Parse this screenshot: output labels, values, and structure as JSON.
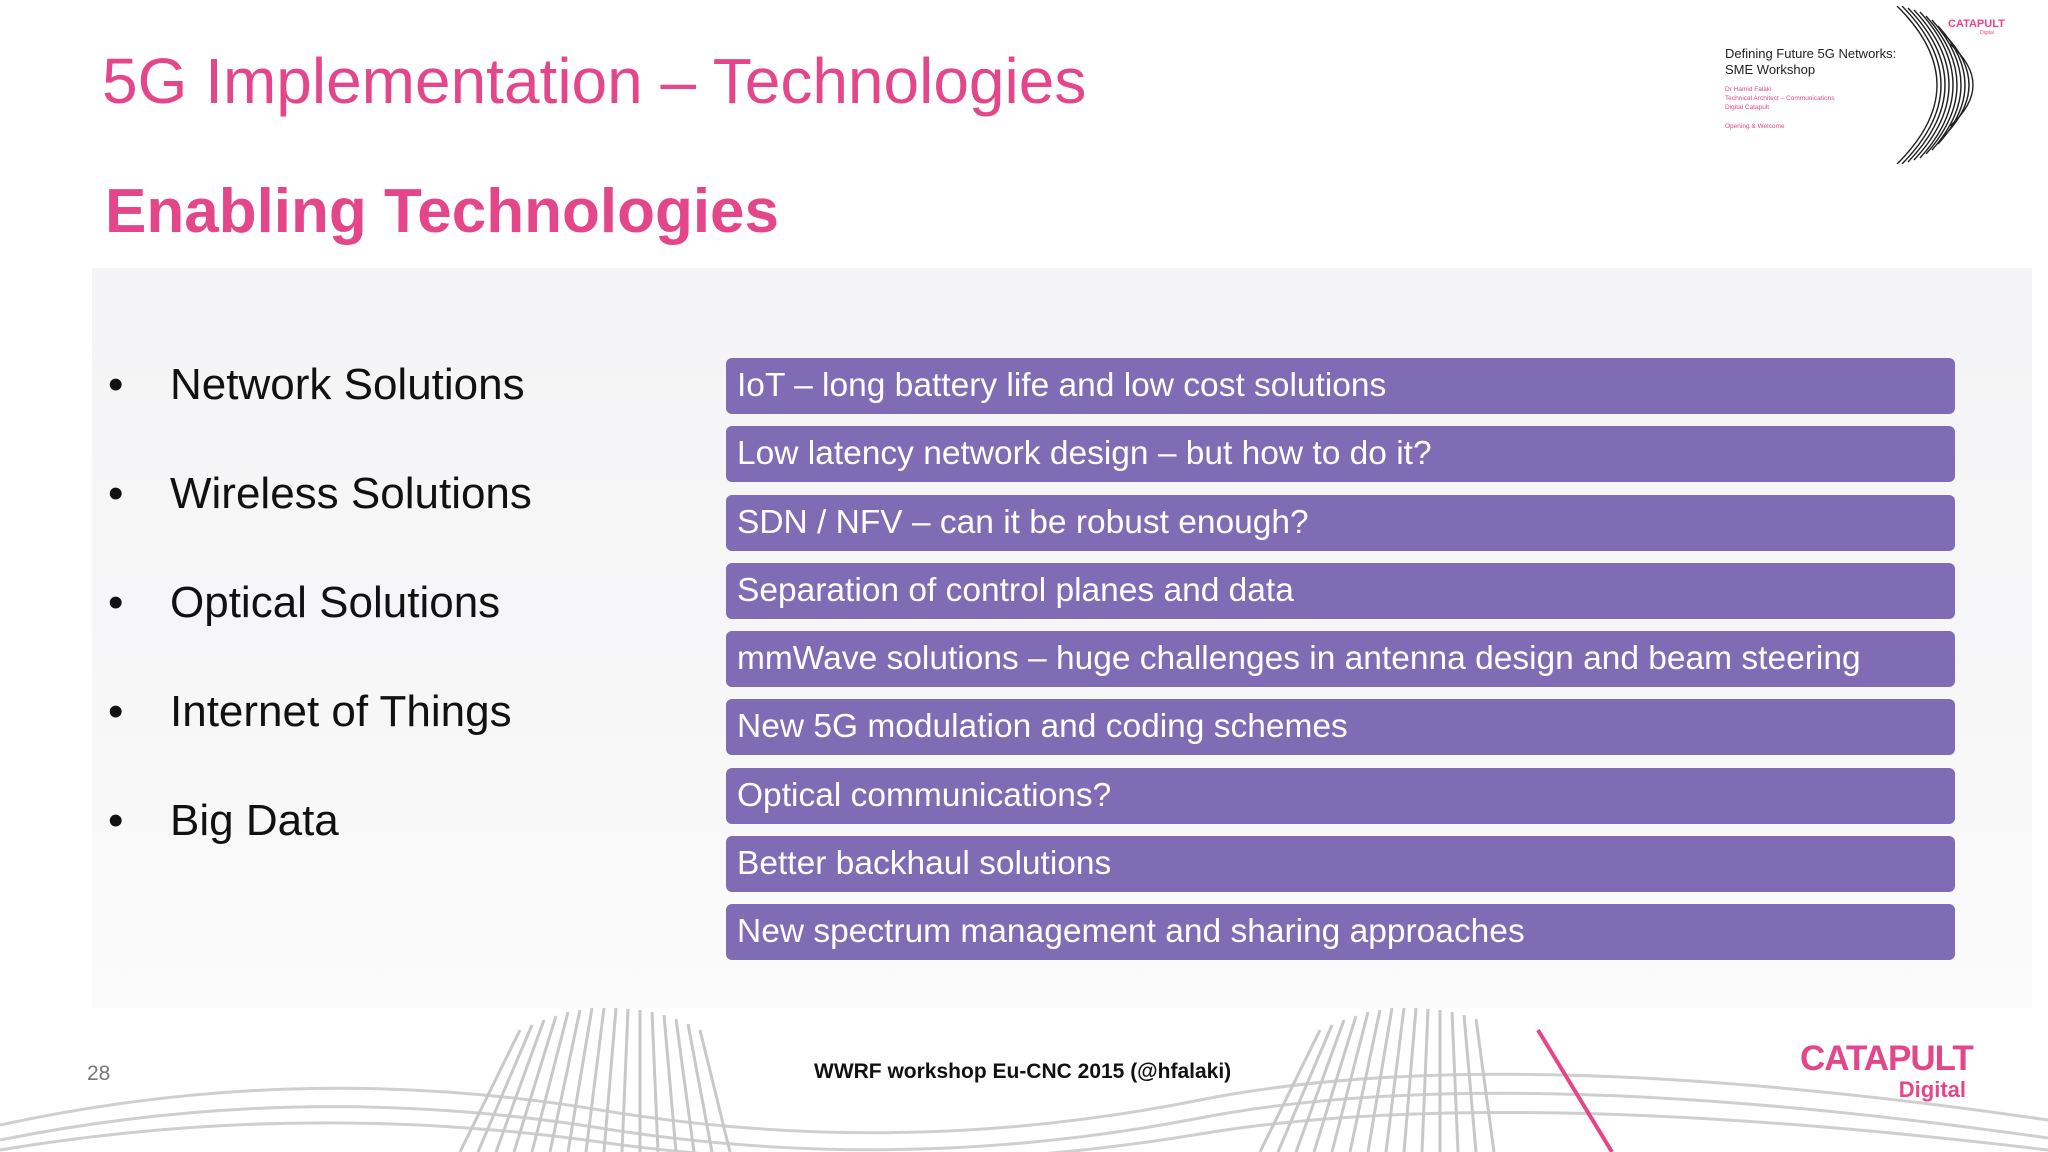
{
  "slide": {
    "title": "5G Implementation – Technologies",
    "subtitle": "Enabling Technologies",
    "bullet_symbol": "•",
    "bullets": [
      "Network Solutions",
      "Wireless Solutions",
      "Optical Solutions",
      "Internet of Things",
      "Big Data"
    ],
    "technologies": [
      "IoT – long battery life and low cost solutions",
      "Low latency network design – but how to do it?",
      "SDN / NFV – can it be robust enough?",
      "Separation of control planes and data",
      "mmWave solutions – huge challenges in antenna design and beam steering",
      "New 5G modulation and coding schemes",
      "Optical communications?",
      "Better backhaul solutions",
      "New spectrum management and sharing approaches"
    ],
    "page_number": "28",
    "footer": "WWRF workshop Eu-CNC 2015 (@hfalaki)",
    "logo_main": "CATAPULT",
    "logo_sub": "Digital"
  },
  "thumbnail": {
    "title_line1": "Defining Future 5G Networks:",
    "title_line2": "SME Workshop",
    "author": "Dr Hamid Falaki",
    "role": "Technical Architect – Communications",
    "org": "Digital Catapult",
    "session": "Opening & Welcome",
    "logo": "CATAPULT",
    "logo_sub": "Digital"
  },
  "colors": {
    "accent_pink": "#e4468a",
    "bar_purple": "#7f6cb4",
    "text_dark": "#111111"
  }
}
